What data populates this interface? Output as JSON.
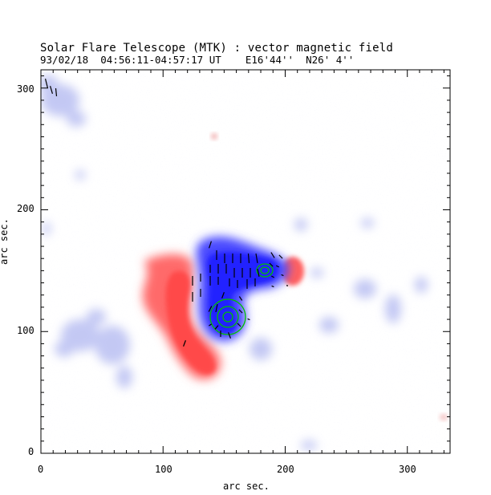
{
  "title": "Solar Flare Telescope (MTK) : vector magnetic field",
  "subtitle": "93/02/18  04:56:11-04:57:17 UT    E16'44''  N26' 4''",
  "x_axis": {
    "label": "arc sec.",
    "ticks": [
      "0",
      "100",
      "200",
      "300"
    ],
    "range": [
      0,
      335
    ]
  },
  "y_axis": {
    "label": "arc sec.",
    "ticks": [
      "0",
      "100",
      "200",
      "300"
    ],
    "range": [
      0,
      315
    ]
  },
  "colors": {
    "positive": "#ff5555",
    "negative": "#3a3aff",
    "background_field": "#c8ccf4",
    "contour": "#00cc00",
    "vector": "#000000"
  }
}
